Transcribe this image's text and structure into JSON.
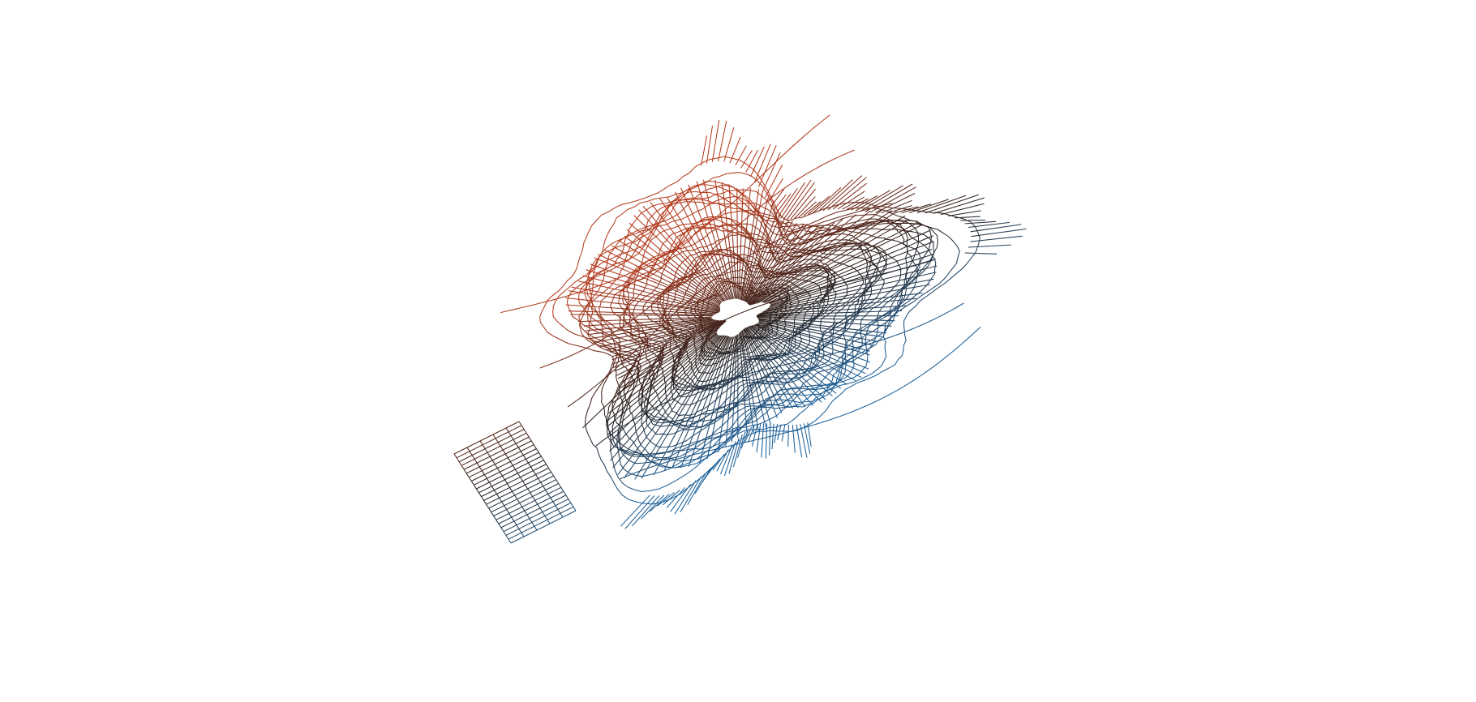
{
  "figure": {
    "subject": "",
    "colors": {
      "top": "#c0401e",
      "middle": "#2a1f1c",
      "bottom": "#0a6fb8",
      "background": "#ffffff"
    }
  }
}
